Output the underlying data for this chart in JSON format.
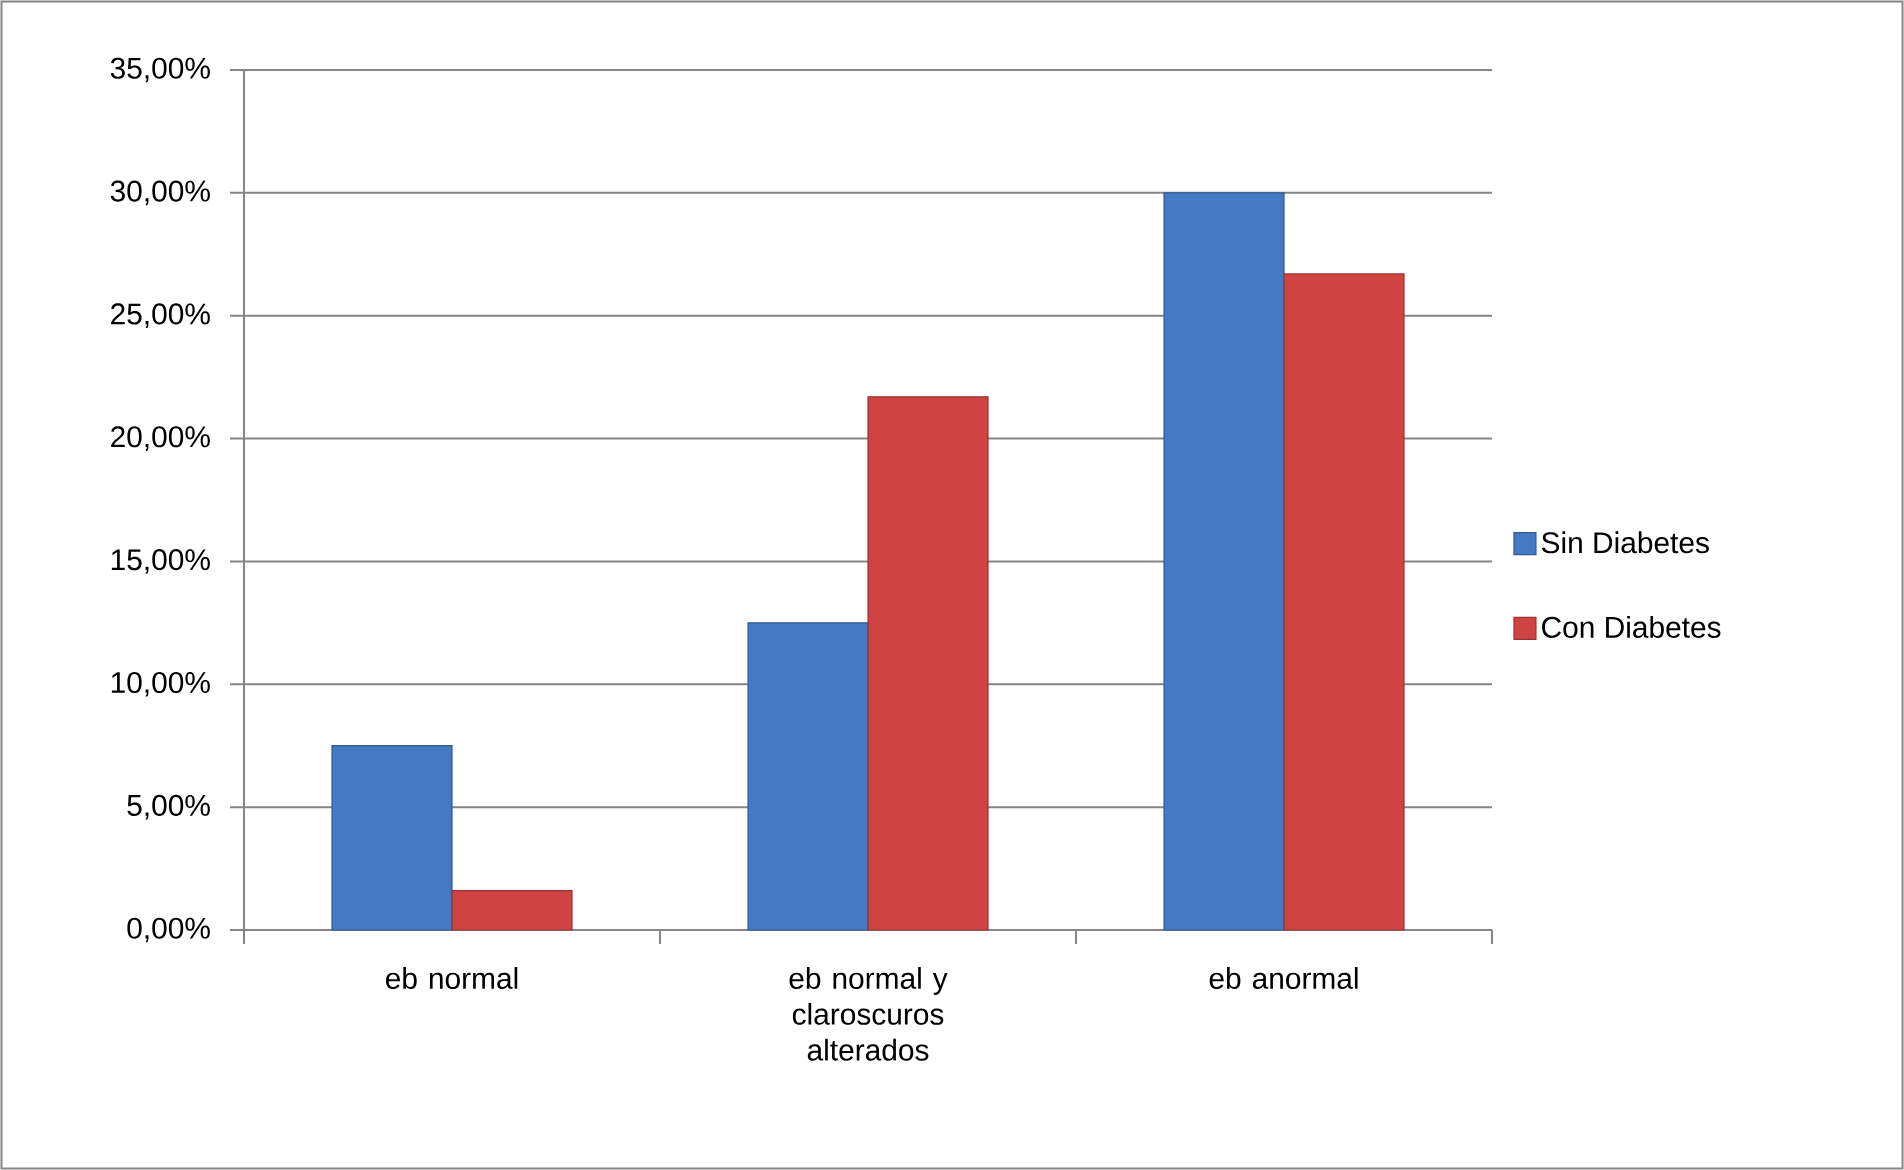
{
  "chart_data": {
    "type": "bar",
    "categories": [
      "eb normal",
      "eb normal y claroscuros alterados",
      "eb anormal"
    ],
    "series": [
      {
        "name": "Sin Diabetes",
        "color": "#4479c4",
        "values": [
          7.5,
          12.5,
          30
        ]
      },
      {
        "name": "Con Diabetes",
        "color": "#d04343",
        "values": [
          1.6,
          21.7,
          26.7
        ]
      }
    ],
    "ylim": [
      0,
      35
    ],
    "yticks": [
      {
        "value": 0,
        "label": "0,00%"
      },
      {
        "value": 5,
        "label": "5,00%"
      },
      {
        "value": 10,
        "label": "10,00%"
      },
      {
        "value": 15,
        "label": "15,00%"
      },
      {
        "value": 20,
        "label": "20,00%"
      },
      {
        "value": 25,
        "label": "25,00%"
      },
      {
        "value": 30,
        "label": "30,00%"
      },
      {
        "value": 35,
        "label": "35,00%"
      }
    ],
    "grid": "y",
    "legend": "right"
  }
}
